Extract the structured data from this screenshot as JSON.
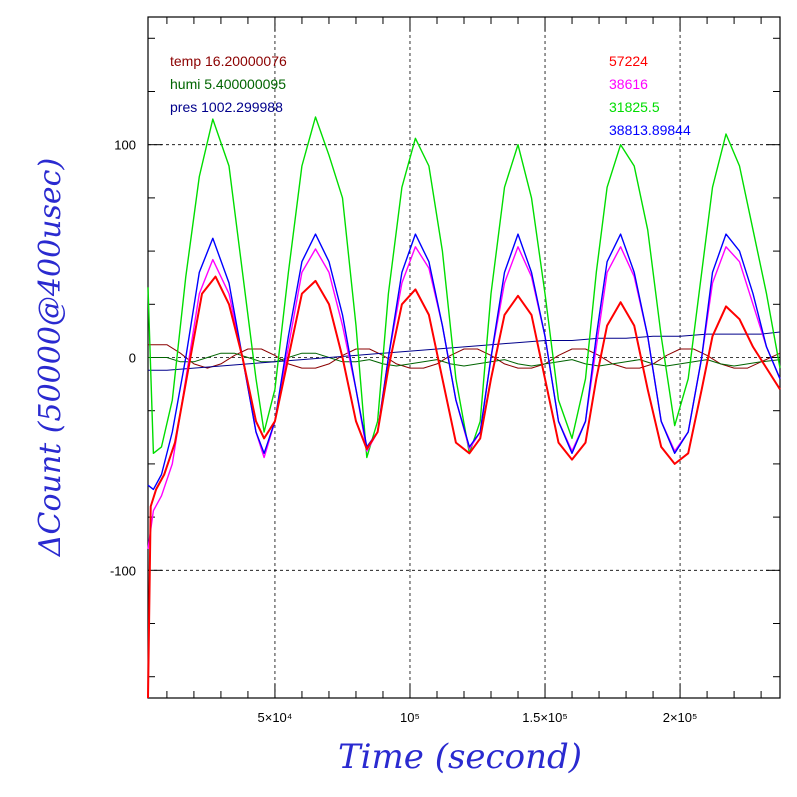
{
  "chart_data": {
    "type": "line",
    "xlabel": "Time (second)",
    "ylabel": "ΔCount (50000@400usec)",
    "xlim": [
      3000,
      237000
    ],
    "ylim": [
      -160,
      160
    ],
    "x_ticks": [
      {
        "value": 50000,
        "label": "5×10⁴"
      },
      {
        "value": 100000,
        "label": "10⁵"
      },
      {
        "value": 150000,
        "label": "1.5×10⁵"
      },
      {
        "value": 200000,
        "label": "2×10⁵"
      }
    ],
    "y_ticks": [
      {
        "value": 100,
        "label": "100"
      },
      {
        "value": 0,
        "label": "0"
      },
      {
        "value": -100,
        "label": "-100"
      }
    ],
    "grid": true,
    "legend_left": [
      {
        "text": "temp 16.20000076",
        "color": "#8b0000"
      },
      {
        "text": "humi 5.400000095",
        "color": "#006400"
      },
      {
        "text": "pres 1002.299988",
        "color": "#00008b"
      }
    ],
    "legend_right": [
      {
        "text": "57224",
        "color": "#ff0000"
      },
      {
        "text": "38616",
        "color": "#ff00ff"
      },
      {
        "text": "31825.5",
        "color": "#00dd00"
      },
      {
        "text": "38813.89844",
        "color": "#0000ff"
      }
    ],
    "series": [
      {
        "name": "31825.5",
        "color": "#00dd00",
        "x": [
          3000,
          5000,
          8000,
          12000,
          17000,
          22000,
          27000,
          33000,
          38000,
          43000,
          46000,
          50000,
          55000,
          60000,
          65000,
          70000,
          75000,
          80000,
          84000,
          88000,
          92000,
          97000,
          102000,
          107000,
          112000,
          117000,
          122000,
          126000,
          130000,
          135000,
          140000,
          145000,
          150000,
          155000,
          160000,
          165000,
          169000,
          173000,
          178000,
          183000,
          188000,
          193000,
          198000,
          203000,
          208000,
          212000,
          217000,
          222000,
          227000,
          232000,
          237000
        ],
        "values": [
          33,
          -45,
          -42,
          -20,
          38,
          85,
          112,
          90,
          40,
          -10,
          -35,
          -15,
          40,
          90,
          113,
          95,
          75,
          15,
          -47,
          -30,
          30,
          80,
          103,
          90,
          50,
          -10,
          -45,
          -30,
          30,
          80,
          100,
          75,
          30,
          -20,
          -38,
          -10,
          40,
          80,
          100,
          90,
          60,
          10,
          -32,
          -10,
          40,
          80,
          105,
          90,
          60,
          30,
          -5
        ]
      },
      {
        "name": "38813.89844",
        "color": "#0000ff",
        "x": [
          3000,
          5000,
          8000,
          12000,
          17000,
          22000,
          27000,
          33000,
          38000,
          43000,
          46000,
          50000,
          55000,
          60000,
          65000,
          70000,
          75000,
          80000,
          84000,
          88000,
          92000,
          97000,
          102000,
          107000,
          112000,
          117000,
          122000,
          126000,
          130000,
          135000,
          140000,
          145000,
          150000,
          155000,
          160000,
          165000,
          169000,
          173000,
          178000,
          183000,
          188000,
          193000,
          198000,
          203000,
          208000,
          212000,
          217000,
          222000,
          227000,
          232000,
          237000
        ],
        "values": [
          -60,
          -62,
          -55,
          -35,
          0,
          40,
          56,
          35,
          0,
          -35,
          -45,
          -30,
          10,
          45,
          58,
          45,
          20,
          -15,
          -42,
          -35,
          0,
          40,
          58,
          45,
          15,
          -20,
          -42,
          -35,
          0,
          40,
          58,
          40,
          10,
          -30,
          -45,
          -30,
          10,
          45,
          58,
          40,
          10,
          -30,
          -45,
          -35,
          0,
          40,
          58,
          50,
          30,
          5,
          -10
        ]
      },
      {
        "name": "38616",
        "color": "#ff00ff",
        "x": [
          3000,
          5000,
          8000,
          12000,
          17000,
          22000,
          27000,
          33000,
          38000,
          43000,
          46000,
          50000,
          55000,
          60000,
          65000,
          70000,
          75000,
          80000,
          84000,
          88000,
          92000,
          97000,
          102000,
          107000,
          112000,
          117000,
          122000,
          126000,
          130000,
          135000,
          140000,
          145000,
          150000,
          155000,
          160000,
          165000,
          169000,
          173000,
          178000,
          183000,
          188000,
          193000,
          198000,
          203000,
          208000,
          212000,
          217000,
          222000,
          227000,
          232000,
          237000
        ],
        "values": [
          -90,
          -72,
          -65,
          -50,
          -10,
          30,
          46,
          30,
          0,
          -35,
          -47,
          -30,
          5,
          40,
          51,
          40,
          15,
          -15,
          -44,
          -35,
          0,
          35,
          52,
          42,
          15,
          -20,
          -43,
          -35,
          0,
          35,
          52,
          38,
          10,
          -30,
          -44,
          -30,
          5,
          40,
          52,
          38,
          10,
          -30,
          -44,
          -35,
          0,
          35,
          52,
          45,
          25,
          5,
          -10
        ]
      },
      {
        "name": "57224",
        "color": "#ff0000",
        "x": [
          3000,
          4000,
          6000,
          9000,
          13000,
          18000,
          23000,
          28000,
          33000,
          38000,
          43000,
          46000,
          50000,
          55000,
          60000,
          65000,
          70000,
          75000,
          80000,
          84000,
          88000,
          92000,
          97000,
          102000,
          107000,
          112000,
          117000,
          122000,
          126000,
          130000,
          135000,
          140000,
          145000,
          150000,
          155000,
          160000,
          165000,
          169000,
          173000,
          178000,
          183000,
          188000,
          193000,
          198000,
          203000,
          208000,
          212000,
          217000,
          222000,
          227000,
          232000,
          237000
        ],
        "values": [
          -160,
          -70,
          -62,
          -55,
          -40,
          -5,
          30,
          38,
          25,
          0,
          -30,
          -38,
          -30,
          0,
          30,
          36,
          25,
          0,
          -30,
          -43,
          -35,
          -5,
          25,
          32,
          20,
          -10,
          -40,
          -45,
          -38,
          -10,
          20,
          29,
          20,
          -10,
          -40,
          -48,
          -40,
          -10,
          15,
          26,
          15,
          -15,
          -42,
          -50,
          -45,
          -15,
          10,
          24,
          18,
          5,
          -5,
          -15
        ]
      },
      {
        "name": "temp 16.20000076",
        "color": "#8b0000",
        "x": [
          3000,
          10000,
          15000,
          20000,
          25000,
          30000,
          35000,
          40000,
          45000,
          50000,
          55000,
          60000,
          65000,
          70000,
          75000,
          80000,
          85000,
          90000,
          95000,
          100000,
          105000,
          110000,
          115000,
          120000,
          125000,
          130000,
          135000,
          140000,
          145000,
          150000,
          155000,
          160000,
          165000,
          170000,
          175000,
          180000,
          185000,
          190000,
          195000,
          200000,
          205000,
          210000,
          215000,
          220000,
          225000,
          230000,
          237000
        ],
        "values": [
          6,
          6,
          2,
          -3,
          -5,
          -3,
          1,
          4,
          4,
          1,
          -3,
          -5,
          -5,
          -3,
          1,
          4,
          4,
          1,
          -3,
          -5,
          -5,
          -3,
          1,
          4,
          4,
          1,
          -3,
          -5,
          -5,
          -3,
          1,
          4,
          4,
          1,
          -3,
          -5,
          -5,
          -3,
          1,
          4,
          4,
          1,
          -3,
          -5,
          -5,
          -2,
          2
        ]
      },
      {
        "name": "humi 5.400000095",
        "color": "#006400",
        "x": [
          3000,
          10000,
          15000,
          20000,
          25000,
          30000,
          35000,
          40000,
          45000,
          50000,
          55000,
          60000,
          65000,
          70000,
          75000,
          80000,
          85000,
          90000,
          95000,
          100000,
          105000,
          110000,
          115000,
          120000,
          125000,
          130000,
          135000,
          140000,
          145000,
          150000,
          155000,
          160000,
          165000,
          170000,
          175000,
          180000,
          185000,
          190000,
          195000,
          200000,
          205000,
          210000,
          215000,
          220000,
          225000,
          230000,
          237000
        ],
        "values": [
          0,
          0,
          -2,
          -2,
          0,
          2,
          2,
          0,
          -2,
          -2,
          0,
          2,
          2,
          0,
          -2,
          -2,
          -1,
          -3,
          -4,
          -3,
          -2,
          -1,
          -3,
          -4,
          -3,
          -2,
          -1,
          -3,
          -4,
          -3,
          -2,
          -1,
          -3,
          -4,
          -3,
          -2,
          -1,
          -3,
          -4,
          -3,
          -2,
          -1,
          -3,
          -4,
          -3,
          -2,
          -1
        ]
      },
      {
        "name": "pres 1002.299988",
        "color": "#00008b",
        "x": [
          3000,
          10000,
          20000,
          30000,
          40000,
          50000,
          60000,
          70000,
          80000,
          90000,
          100000,
          110000,
          120000,
          130000,
          140000,
          150000,
          160000,
          170000,
          180000,
          190000,
          200000,
          210000,
          220000,
          230000,
          237000
        ],
        "values": [
          -6,
          -6,
          -5,
          -4,
          -3,
          -2,
          -1,
          0,
          1,
          2,
          3,
          4,
          5,
          6,
          7,
          8,
          8,
          9,
          9,
          10,
          10,
          11,
          11,
          11,
          12
        ]
      }
    ]
  }
}
